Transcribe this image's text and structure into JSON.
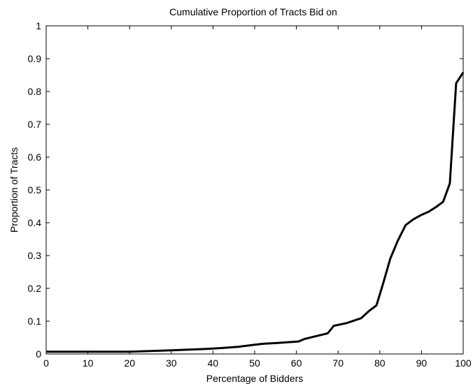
{
  "chart_data": {
    "type": "line",
    "title": "Cumulative Proportion of Tracts Bid on",
    "xlabel": "Percentage of Bidders",
    "ylabel": "Proportion of Tracts",
    "xlim": [
      0,
      100
    ],
    "ylim": [
      0,
      1
    ],
    "xticks": [
      0,
      10,
      20,
      30,
      40,
      50,
      60,
      70,
      80,
      90,
      100
    ],
    "yticks": [
      0,
      0.1,
      0.2,
      0.3,
      0.4,
      0.5,
      0.6,
      0.7,
      0.8,
      0.9,
      1
    ],
    "xtick_labels": [
      "0",
      "10",
      "20",
      "30",
      "40",
      "50",
      "60",
      "70",
      "80",
      "90",
      "100"
    ],
    "ytick_labels": [
      "0",
      "0.1",
      "0.2",
      "0.3",
      "0.4",
      "0.5",
      "0.6",
      "0.7",
      "0.8",
      "0.9",
      "1"
    ],
    "grid": false,
    "series": [
      {
        "color": "#000000",
        "x": [
          0,
          10,
          20,
          30,
          38,
          42,
          46,
          50,
          52,
          56,
          60.5,
          62,
          65,
          67.5,
          69,
          72,
          75.5,
          77.5,
          79.2,
          80.8,
          82.5,
          84.3,
          86.2,
          88,
          90,
          91.8,
          93.6,
          95.2,
          96.8,
          98.3,
          100
        ],
        "y": [
          0.007,
          0.007,
          0.007,
          0.011,
          0.015,
          0.018,
          0.022,
          0.028,
          0.031,
          0.034,
          0.038,
          0.046,
          0.055,
          0.063,
          0.086,
          0.094,
          0.109,
          0.132,
          0.148,
          0.215,
          0.29,
          0.345,
          0.393,
          0.41,
          0.424,
          0.434,
          0.449,
          0.464,
          0.52,
          0.825,
          0.858
        ]
      }
    ]
  }
}
